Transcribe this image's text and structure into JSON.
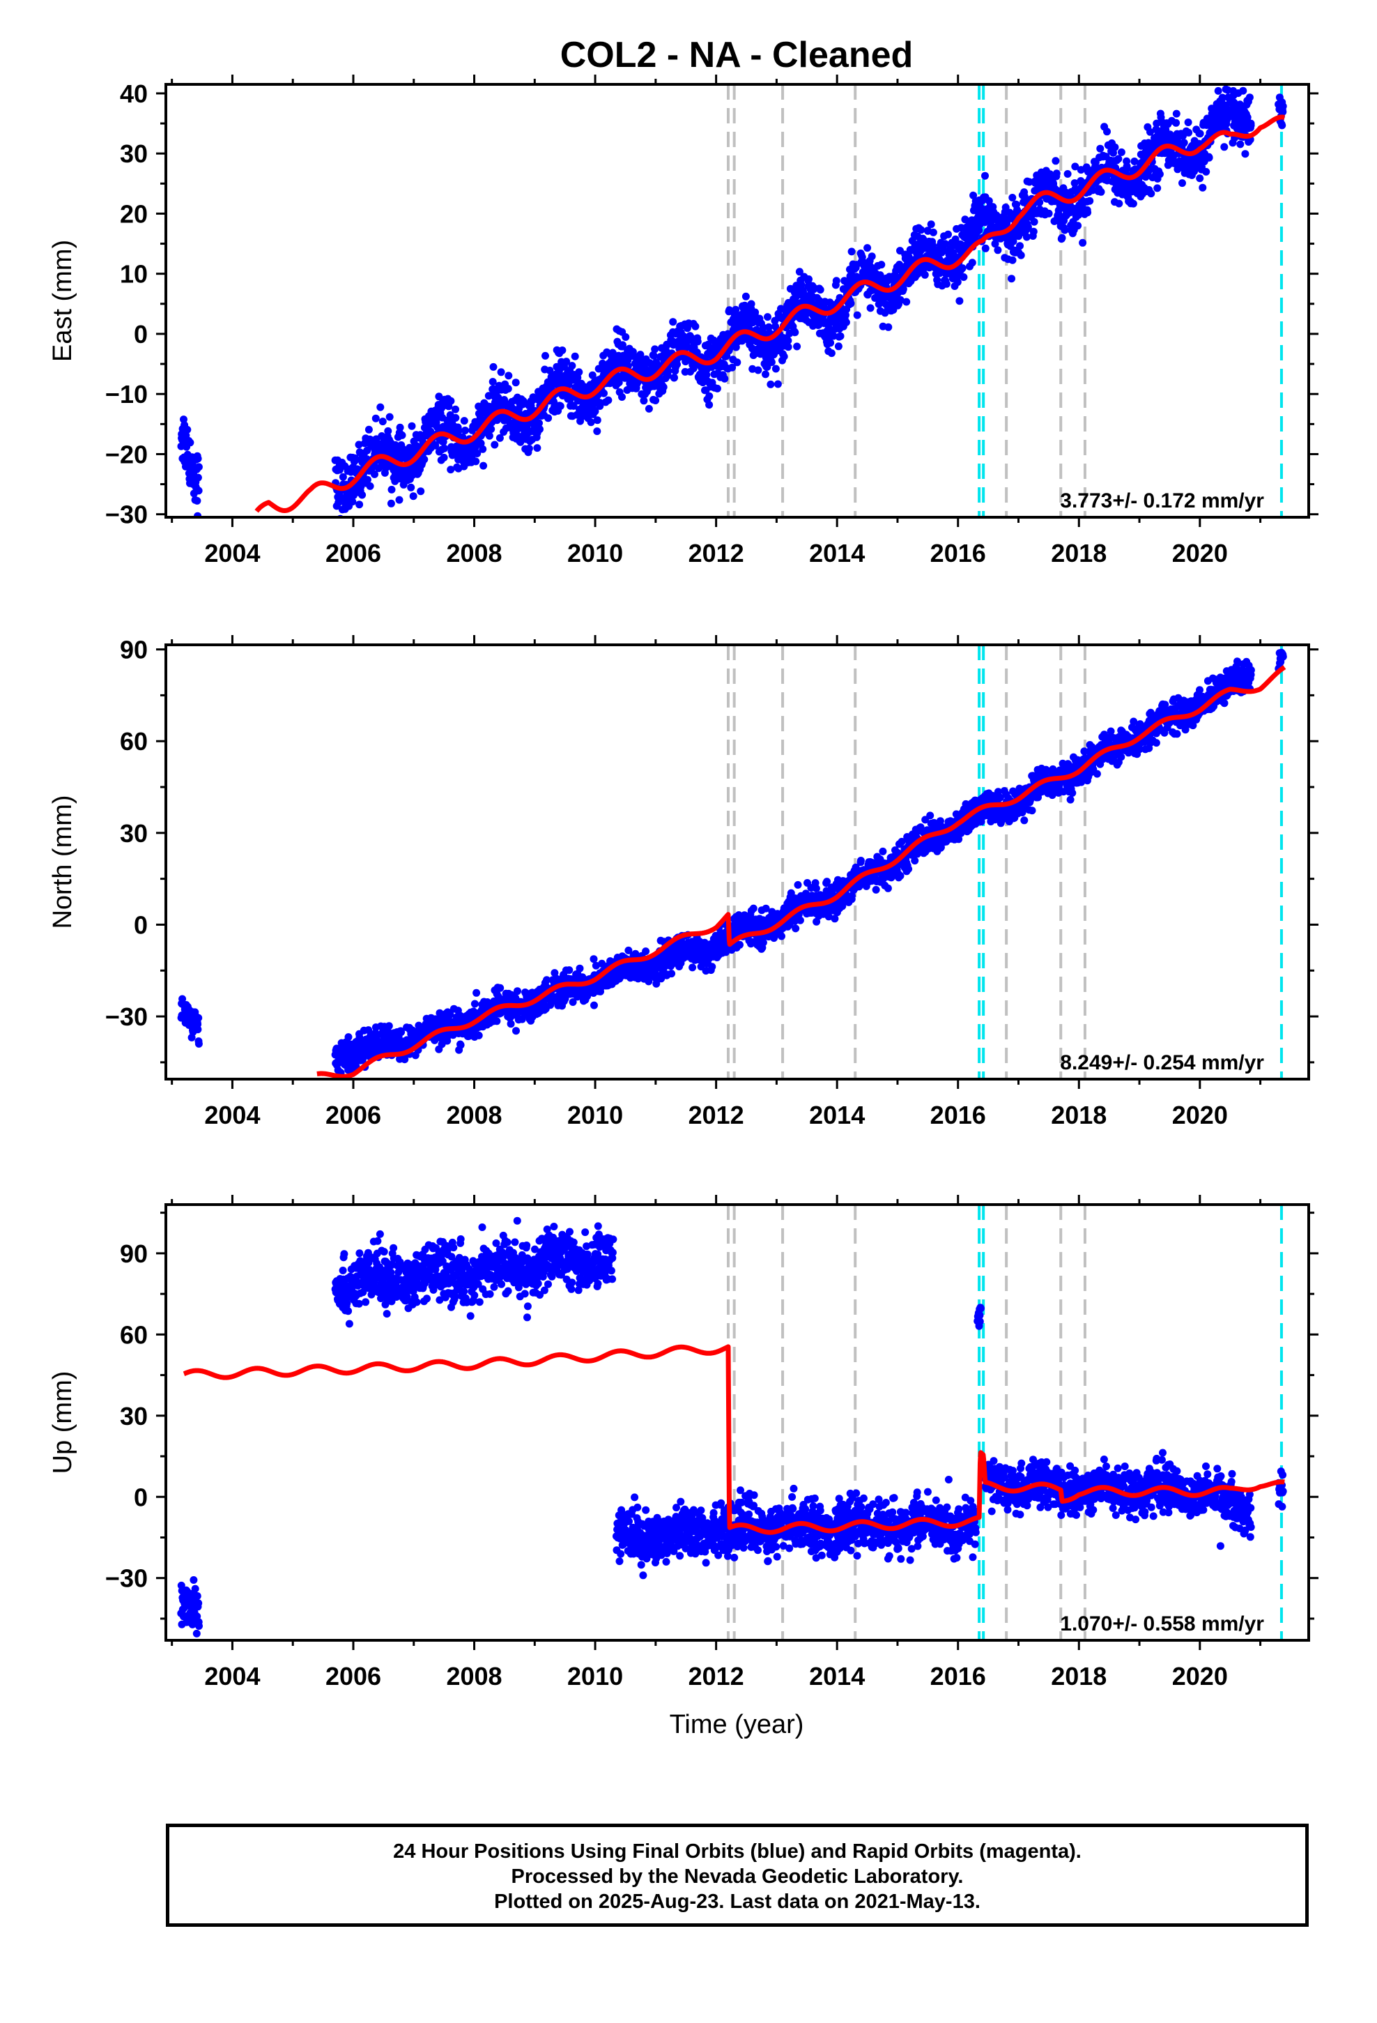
{
  "figure": {
    "title": "COL2  - NA - Cleaned",
    "xlabel": "Time (year)"
  },
  "footer": {
    "line1": "24 Hour Positions Using Final Orbits (blue) and Rapid Orbits (magenta).",
    "line2": "Processed by the Nevada Geodetic Laboratory.",
    "line3": "Plotted on 2025-Aug-23. Last data on 2021-May-13."
  },
  "colors": {
    "points": "#0000ff",
    "model": "#ff0000",
    "event_lines": "#c0c0c0",
    "equipment_lines": "#00e5ee"
  },
  "chart_data": [
    {
      "type": "scatter",
      "component": "East",
      "ylabel": "East (mm)",
      "rate": "3.773+/- 0.172 mm/yr",
      "xlim": [
        2002.9,
        2021.8
      ],
      "ylim": [
        -30.5,
        41.5
      ],
      "xticks": [
        2004,
        2006,
        2008,
        2010,
        2012,
        2014,
        2016,
        2018,
        2020
      ],
      "yticks": [
        -30,
        -20,
        -10,
        0,
        10,
        20,
        30,
        40
      ],
      "event_lines": [
        2012.2,
        2012.3,
        2013.1,
        2014.3,
        2016.8,
        2017.7,
        2018.1
      ],
      "equipment_lines": [
        2016.35,
        2016.42,
        2021.35
      ],
      "series": [
        {
          "kind": "points",
          "segments": [
            {
              "x0": 2003.15,
              "x1": 2003.45,
              "knots": [
                [
                  2003.15,
                  -16
                ],
                [
                  2003.45,
                  -25
                ]
              ],
              "amp": 0,
              "spread": 2.5
            },
            {
              "x0": 2005.7,
              "x1": 2020.85,
              "knots": [
                [
                  2005.7,
                  -24
                ],
                [
                  2006.5,
                  -21
                ],
                [
                  2008,
                  -16
                ],
                [
                  2010,
                  -8
                ],
                [
                  2012,
                  -3
                ],
                [
                  2014,
                  5
                ],
                [
                  2016,
                  14
                ],
                [
                  2017,
                  20
                ],
                [
                  2018,
                  24
                ],
                [
                  2019,
                  28
                ],
                [
                  2020,
                  32
                ],
                [
                  2020.85,
                  37
                ]
              ],
              "amp": 2.5,
              "spread": 2.3
            },
            {
              "x0": 2021.3,
              "x1": 2021.38,
              "knots": [
                [
                  2021.3,
                  38
                ],
                [
                  2021.38,
                  37
                ]
              ],
              "amp": 0,
              "spread": 1.5
            }
          ]
        },
        {
          "kind": "model",
          "knots": [
            [
              2004.4,
              -31
            ],
            [
              2004.6,
              -28.5
            ],
            [
              2005.3,
              -27
            ],
            [
              2006,
              -23.5
            ],
            [
              2008,
              -16
            ],
            [
              2010,
              -8.5
            ],
            [
              2012,
              -3
            ],
            [
              2014,
              5.5
            ],
            [
              2016,
              13
            ],
            [
              2016.4,
              14
            ],
            [
              2017,
              20.5
            ],
            [
              2018,
              24
            ],
            [
              2020,
              32
            ],
            [
              2020.5,
              32
            ],
            [
              2021,
              35.5
            ],
            [
              2021.4,
              34.5
            ]
          ],
          "amp": 1.5
        }
      ]
    },
    {
      "type": "scatter",
      "component": "North",
      "ylabel": "North (mm)",
      "rate": "8.249+/- 0.254 mm/yr",
      "xlim": [
        2002.9,
        2021.8
      ],
      "ylim": [
        -50.5,
        91.5
      ],
      "xticks": [
        2004,
        2006,
        2008,
        2010,
        2012,
        2014,
        2016,
        2018,
        2020
      ],
      "yticks": [
        -30,
        0,
        30,
        60,
        90
      ],
      "event_lines": [
        2012.2,
        2012.3,
        2013.1,
        2014.3,
        2016.8,
        2017.7,
        2018.1
      ],
      "equipment_lines": [
        2016.35,
        2016.42,
        2021.35
      ],
      "series": [
        {
          "kind": "points",
          "segments": [
            {
              "x0": 2003.15,
              "x1": 2003.45,
              "knots": [
                [
                  2003.15,
                  -27
                ],
                [
                  2003.45,
                  -34
                ]
              ],
              "amp": 0,
              "spread": 2.5
            },
            {
              "x0": 2005.7,
              "x1": 2020.85,
              "knots": [
                [
                  2005.7,
                  -42
                ],
                [
                  2006.5,
                  -40
                ],
                [
                  2008,
                  -31
                ],
                [
                  2010,
                  -18
                ],
                [
                  2012,
                  -7
                ],
                [
                  2012.3,
                  -4
                ],
                [
                  2014,
                  10
                ],
                [
                  2016,
                  33
                ],
                [
                  2017,
                  41
                ],
                [
                  2018,
                  51
                ],
                [
                  2019,
                  62
                ],
                [
                  2020,
                  72
                ],
                [
                  2020.85,
                  82
                ]
              ],
              "amp": 1.5,
              "spread": 2.5
            },
            {
              "x0": 2021.3,
              "x1": 2021.38,
              "knots": [
                [
                  2021.3,
                  86
                ],
                [
                  2021.38,
                  88
                ]
              ],
              "amp": 0,
              "spread": 1.5
            }
          ]
        },
        {
          "kind": "model",
          "knots": [
            [
              2005.4,
              -50
            ],
            [
              2006,
              -48
            ],
            [
              2008,
              -31
            ],
            [
              2010,
              -17
            ],
            [
              2012,
              0
            ],
            [
              2012.2,
              3
            ],
            [
              2012.22,
              -7
            ],
            [
              2014,
              10
            ],
            [
              2016,
              34
            ],
            [
              2017,
              42
            ],
            [
              2018,
              51
            ],
            [
              2019,
              62
            ],
            [
              2020,
              71
            ],
            [
              2020.5,
              76
            ],
            [
              2021,
              78
            ],
            [
              2021.4,
              83
            ]
          ],
          "amp": 1.2
        }
      ]
    },
    {
      "type": "scatter",
      "component": "Up",
      "ylabel": "Up (mm)",
      "rate": "1.070+/- 0.558 mm/yr",
      "xlim": [
        2002.9,
        2021.8
      ],
      "ylim": [
        -53,
        108
      ],
      "xticks": [
        2004,
        2006,
        2008,
        2010,
        2012,
        2014,
        2016,
        2018,
        2020
      ],
      "yticks": [
        -30,
        0,
        30,
        60,
        90
      ],
      "event_lines": [
        2012.2,
        2012.3,
        2013.1,
        2014.3,
        2016.8,
        2017.7,
        2018.1
      ],
      "equipment_lines": [
        2016.35,
        2016.42,
        2021.35
      ],
      "series": [
        {
          "kind": "points",
          "segments": [
            {
              "x0": 2003.15,
              "x1": 2003.45,
              "knots": [
                [
                  2003.15,
                  -38
                ],
                [
                  2003.45,
                  -40
                ]
              ],
              "amp": 0,
              "spread": 5
            },
            {
              "x0": 2005.7,
              "x1": 2010.3,
              "knots": [
                [
                  2005.7,
                  79
                ],
                [
                  2008,
                  83
                ],
                [
                  2010.3,
                  89
                ]
              ],
              "amp": 2,
              "spread": 5
            },
            {
              "x0": 2010.35,
              "x1": 2016.3,
              "knots": [
                [
                  2010.35,
                  -15
                ],
                [
                  2012,
                  -12
                ],
                [
                  2014,
                  -11
                ],
                [
                  2016.3,
                  -11
                ]
              ],
              "amp": 2,
              "spread": 4.5
            },
            {
              "x0": 2016.32,
              "x1": 2016.38,
              "knots": [
                [
                  2016.32,
                  66
                ],
                [
                  2016.38,
                  68
                ]
              ],
              "amp": 0,
              "spread": 2
            },
            {
              "x0": 2016.45,
              "x1": 2020.85,
              "knots": [
                [
                  2016.45,
                  5
                ],
                [
                  2017.5,
                  3
                ],
                [
                  2019,
                  3
                ],
                [
                  2020,
                  2
                ],
                [
                  2020.85,
                  -5
                ]
              ],
              "amp": 2,
              "spread": 4
            },
            {
              "x0": 2021.3,
              "x1": 2021.38,
              "knots": [
                [
                  2021.3,
                  4
                ],
                [
                  2021.38,
                  2
                ]
              ],
              "amp": 0,
              "spread": 3
            }
          ]
        },
        {
          "kind": "model",
          "knots": [
            [
              2003.2,
              45
            ],
            [
              2008,
              49
            ],
            [
              2012.2,
              55
            ],
            [
              2012.22,
              -12
            ],
            [
              2014,
              -11
            ],
            [
              2016.35,
              -9
            ],
            [
              2016.37,
              15
            ],
            [
              2016.42,
              14
            ],
            [
              2016.45,
              4
            ],
            [
              2017.7,
              3
            ],
            [
              2017.72,
              -1
            ],
            [
              2018,
              2
            ],
            [
              2020,
              2
            ],
            [
              2020.5,
              2
            ],
            [
              2021,
              5
            ],
            [
              2021.4,
              4
            ]
          ],
          "amp": 1.5
        }
      ]
    }
  ]
}
